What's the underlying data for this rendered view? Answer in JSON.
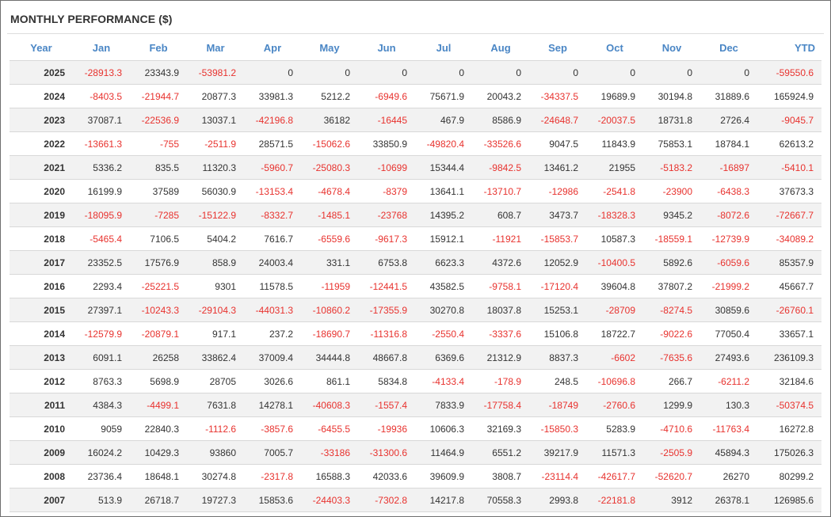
{
  "title": "MONTHLY PERFORMANCE ($)",
  "columns": [
    "Year",
    "Jan",
    "Feb",
    "Mar",
    "Apr",
    "May",
    "Jun",
    "Jul",
    "Aug",
    "Sep",
    "Oct",
    "Nov",
    "Dec",
    "YTD"
  ],
  "colors": {
    "header": "#4a86c5",
    "negative": "#e8322e",
    "text": "#333333",
    "row_alt": "#f2f2f2"
  },
  "rows": [
    [
      "2025",
      "-28913.3",
      "23343.9",
      "-53981.2",
      "0",
      "0",
      "0",
      "0",
      "0",
      "0",
      "0",
      "0",
      "0",
      "-59550.6"
    ],
    [
      "2024",
      "-8403.5",
      "-21944.7",
      "20877.3",
      "33981.3",
      "5212.2",
      "-6949.6",
      "75671.9",
      "20043.2",
      "-34337.5",
      "19689.9",
      "30194.8",
      "31889.6",
      "165924.9"
    ],
    [
      "2023",
      "37087.1",
      "-22536.9",
      "13037.1",
      "-42196.8",
      "36182",
      "-16445",
      "467.9",
      "8586.9",
      "-24648.7",
      "-20037.5",
      "18731.8",
      "2726.4",
      "-9045.7"
    ],
    [
      "2022",
      "-13661.3",
      "-755",
      "-2511.9",
      "28571.5",
      "-15062.6",
      "33850.9",
      "-49820.4",
      "-33526.6",
      "9047.5",
      "11843.9",
      "75853.1",
      "18784.1",
      "62613.2"
    ],
    [
      "2021",
      "5336.2",
      "835.5",
      "11320.3",
      "-5960.7",
      "-25080.3",
      "-10699",
      "15344.4",
      "-9842.5",
      "13461.2",
      "21955",
      "-5183.2",
      "-16897",
      "-5410.1"
    ],
    [
      "2020",
      "16199.9",
      "37589",
      "56030.9",
      "-13153.4",
      "-4678.4",
      "-8379",
      "13641.1",
      "-13710.7",
      "-12986",
      "-2541.8",
      "-23900",
      "-6438.3",
      "37673.3"
    ],
    [
      "2019",
      "-18095.9",
      "-7285",
      "-15122.9",
      "-8332.7",
      "-1485.1",
      "-23768",
      "14395.2",
      "608.7",
      "3473.7",
      "-18328.3",
      "9345.2",
      "-8072.6",
      "-72667.7"
    ],
    [
      "2018",
      "-5465.4",
      "7106.5",
      "5404.2",
      "7616.7",
      "-6559.6",
      "-9617.3",
      "15912.1",
      "-11921",
      "-15853.7",
      "10587.3",
      "-18559.1",
      "-12739.9",
      "-34089.2"
    ],
    [
      "2017",
      "23352.5",
      "17576.9",
      "858.9",
      "24003.4",
      "331.1",
      "6753.8",
      "6623.3",
      "4372.6",
      "12052.9",
      "-10400.5",
      "5892.6",
      "-6059.6",
      "85357.9"
    ],
    [
      "2016",
      "2293.4",
      "-25221.5",
      "9301",
      "11578.5",
      "-11959",
      "-12441.5",
      "43582.5",
      "-9758.1",
      "-17120.4",
      "39604.8",
      "37807.2",
      "-21999.2",
      "45667.7"
    ],
    [
      "2015",
      "27397.1",
      "-10243.3",
      "-29104.3",
      "-44031.3",
      "-10860.2",
      "-17355.9",
      "30270.8",
      "18037.8",
      "15253.1",
      "-28709",
      "-8274.5",
      "30859.6",
      "-26760.1"
    ],
    [
      "2014",
      "-12579.9",
      "-20879.1",
      "917.1",
      "237.2",
      "-18690.7",
      "-11316.8",
      "-2550.4",
      "-3337.6",
      "15106.8",
      "18722.7",
      "-9022.6",
      "77050.4",
      "33657.1"
    ],
    [
      "2013",
      "6091.1",
      "26258",
      "33862.4",
      "37009.4",
      "34444.8",
      "48667.8",
      "6369.6",
      "21312.9",
      "8837.3",
      "-6602",
      "-7635.6",
      "27493.6",
      "236109.3"
    ],
    [
      "2012",
      "8763.3",
      "5698.9",
      "28705",
      "3026.6",
      "861.1",
      "5834.8",
      "-4133.4",
      "-178.9",
      "248.5",
      "-10696.8",
      "266.7",
      "-6211.2",
      "32184.6"
    ],
    [
      "2011",
      "4384.3",
      "-4499.1",
      "7631.8",
      "14278.1",
      "-40608.3",
      "-1557.4",
      "7833.9",
      "-17758.4",
      "-18749",
      "-2760.6",
      "1299.9",
      "130.3",
      "-50374.5"
    ],
    [
      "2010",
      "9059",
      "22840.3",
      "-1112.6",
      "-3857.6",
      "-6455.5",
      "-19936",
      "10606.3",
      "32169.3",
      "-15850.3",
      "5283.9",
      "-4710.6",
      "-11763.4",
      "16272.8"
    ],
    [
      "2009",
      "16024.2",
      "10429.3",
      "93860",
      "7005.7",
      "-33186",
      "-31300.6",
      "11464.9",
      "6551.2",
      "39217.9",
      "11571.3",
      "-2505.9",
      "45894.3",
      "175026.3"
    ],
    [
      "2008",
      "23736.4",
      "18648.1",
      "30274.8",
      "-2317.8",
      "16588.3",
      "42033.6",
      "39609.9",
      "3808.7",
      "-23114.4",
      "-42617.7",
      "-52620.7",
      "26270",
      "80299.2"
    ],
    [
      "2007",
      "513.9",
      "26718.7",
      "19727.3",
      "15853.6",
      "-24403.3",
      "-7302.8",
      "14217.8",
      "70558.3",
      "2993.8",
      "-22181.8",
      "3912",
      "26378.1",
      "126985.6"
    ]
  ]
}
